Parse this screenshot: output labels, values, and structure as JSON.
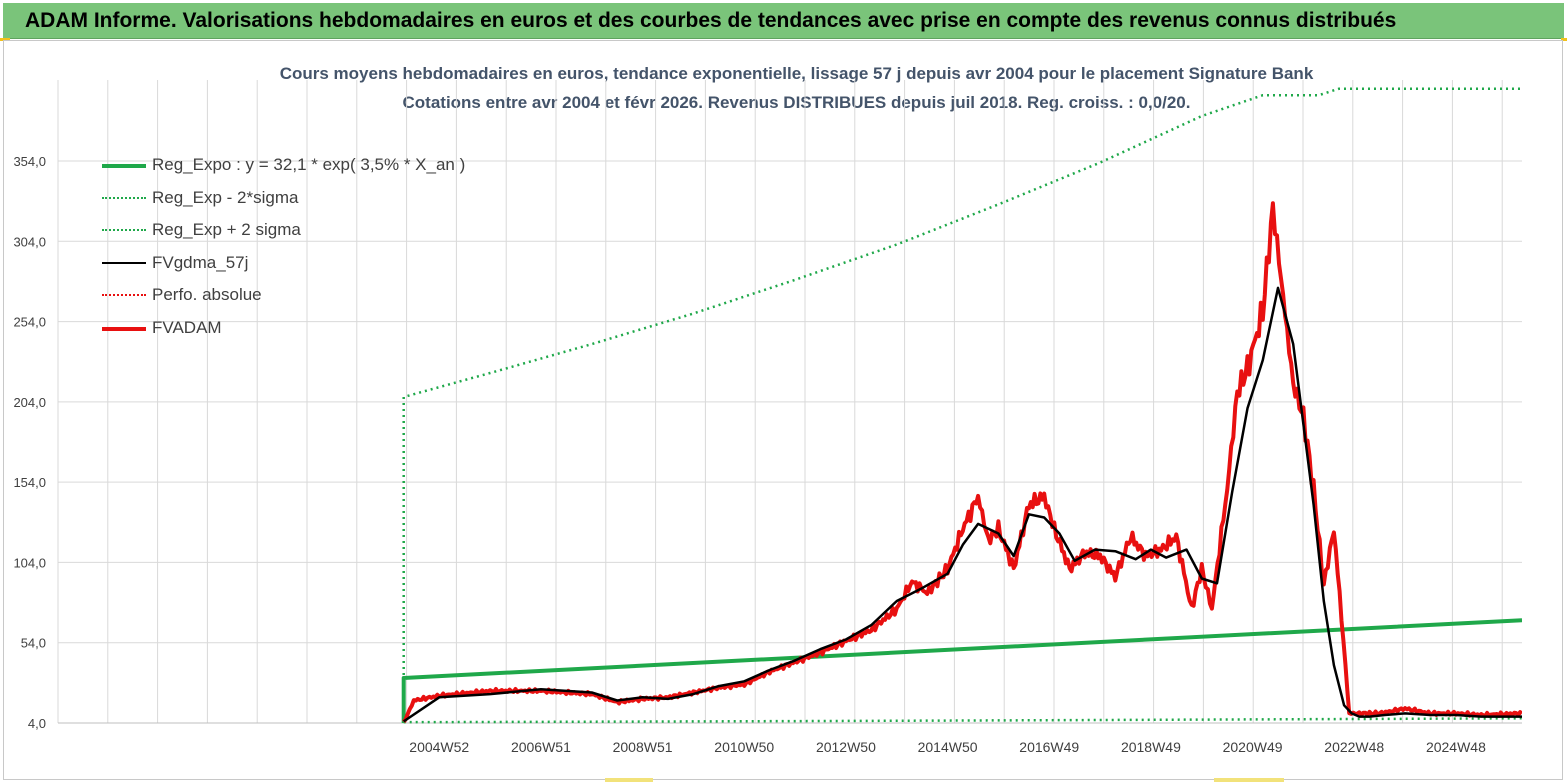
{
  "banner": {
    "title": "ADAM Informe. Valorisations hebdomadaires en euros et des courbes de tendances avec prise en compte des revenus connus distribués"
  },
  "colors": {
    "banner_bg": "#7ac47a",
    "reg_expo": "#1fa84a",
    "sigma": "#1fa84a",
    "fvgdma": "#000000",
    "perfo": "#e81010",
    "fvadam": "#e81010",
    "grid": "#d9d9d9",
    "title_text": "#44546a"
  },
  "chart_data": {
    "type": "line",
    "title_line1": "Cours moyens hebdomadaires en euros, tendance exponentielle, lissage 57 j depuis avr 2004 pour le placement Signature Bank",
    "title_line2": "Cotations entre avr 2004 et févr 2026. Revenus DISTRIBUES depuis juil 2018. Reg. croiss. : 0,0/20.",
    "y_ticks": [
      "4,0",
      "54,0",
      "104,0",
      "154,0",
      "204,0",
      "254,0",
      "304,0",
      "354,0"
    ],
    "y_tick_values": [
      4,
      54,
      104,
      154,
      204,
      254,
      304,
      354
    ],
    "ylim": [
      4,
      394
    ],
    "xlim": [
      1997.5,
      2026.3
    ],
    "x_ticks": [
      "2004W52",
      "2006W51",
      "2008W51",
      "2010W50",
      "2012W50",
      "2014W50",
      "2016W49",
      "2018W49",
      "2020W49",
      "2022W48",
      "2024W48"
    ],
    "x_tick_values": [
      2005.0,
      2007.0,
      2009.0,
      2011.0,
      2013.0,
      2015.0,
      2017.0,
      2019.0,
      2021.0,
      2023.0,
      2025.0
    ],
    "legend_position": "top-left",
    "grid": true,
    "series": [
      {
        "name": "Reg_Expo : y = 32,1 * exp( 3,5% *  X_an )",
        "style": "solid-thick",
        "color": "#1fa84a",
        "x": [
          2004.3,
          2004.3,
          2026.3
        ],
        "y": [
          4,
          32,
          68
        ]
      },
      {
        "name": "Reg_Exp - 2*sigma",
        "style": "dotted",
        "color": "#1fa84a",
        "x": [
          2004.3,
          2008.0,
          2012.0,
          2016.0,
          2020.0,
          2024.0,
          2026.3
        ],
        "y": [
          4.5,
          4.8,
          5.2,
          5.6,
          6.1,
          6.6,
          6.9
        ]
      },
      {
        "name": "Reg_Exp + 2 sigma",
        "style": "dotted",
        "color": "#1fa84a",
        "x": [
          2004.3,
          2004.3,
          2006.0,
          2008.0,
          2010.0,
          2012.0,
          2014.0,
          2016.0,
          2018.0,
          2020.0,
          2021.2,
          2022.3,
          2022.7,
          2026.3
        ],
        "y": [
          4,
          207,
          222,
          240,
          259,
          280,
          302,
          327,
          353,
          382,
          395,
          395,
          399,
          399
        ]
      },
      {
        "name": "FVgdma_57j",
        "style": "solid",
        "color": "#000000",
        "x": [
          2004.3,
          2005.0,
          2006.0,
          2007.0,
          2008.0,
          2008.5,
          2009.0,
          2009.5,
          2010.0,
          2010.5,
          2011.0,
          2011.5,
          2012.0,
          2012.5,
          2013.0,
          2013.5,
          2014.0,
          2014.5,
          2015.0,
          2015.3,
          2015.6,
          2016.0,
          2016.3,
          2016.6,
          2016.9,
          2017.2,
          2017.5,
          2017.9,
          2018.3,
          2018.7,
          2019.0,
          2019.3,
          2019.7,
          2020.0,
          2020.3,
          2020.6,
          2020.9,
          2021.2,
          2021.5,
          2021.8,
          2022.0,
          2022.2,
          2022.4,
          2022.6,
          2022.8,
          2022.95,
          2023.1,
          2023.3,
          2023.6,
          2024.0,
          2024.5,
          2025.0,
          2025.5,
          2026.3
        ],
        "y": [
          5,
          20,
          22,
          25,
          23,
          18,
          20,
          19,
          22,
          27,
          30,
          37,
          43,
          50,
          56,
          65,
          80,
          88,
          97,
          115,
          128,
          122,
          108,
          134,
          132,
          122,
          105,
          112,
          111,
          106,
          112,
          107,
          112,
          94,
          91,
          148,
          200,
          230,
          275,
          240,
          190,
          140,
          80,
          40,
          15,
          10,
          8,
          8,
          9,
          10,
          9,
          9,
          8,
          8
        ]
      },
      {
        "name": "Perfo. absolue",
        "style": "dotted",
        "color": "#e81010",
        "x": [
          2004.3,
          2004.5,
          2005.0,
          2006.0,
          2007.0,
          2008.0,
          2008.5,
          2009.0,
          2009.5,
          2010.0,
          2010.5,
          2011.0,
          2011.5,
          2012.0,
          2012.5,
          2013.0,
          2013.5,
          2014.0,
          2014.3,
          2014.6,
          2015.0,
          2015.3,
          2015.6,
          2015.8,
          2016.0,
          2016.3,
          2016.6,
          2016.9,
          2017.1,
          2017.4,
          2017.7,
          2018.0,
          2018.3,
          2018.6,
          2018.9,
          2019.2,
          2019.5,
          2019.8,
          2020.0,
          2020.2,
          2020.5,
          2020.7,
          2020.9,
          2021.2,
          2021.4,
          2021.6,
          2021.8,
          2022.0,
          2022.2,
          2022.4,
          2022.6,
          2022.75,
          2022.9,
          2023.1,
          2023.5,
          2024.0,
          2024.5,
          2025.0,
          2025.5,
          2026.3
        ],
        "y": [
          4,
          18,
          21,
          24,
          24,
          22,
          17,
          19,
          20,
          23,
          26,
          28,
          36,
          42,
          48,
          55,
          62,
          75,
          92,
          85,
          100,
          125,
          145,
          118,
          125,
          100,
          140,
          145,
          125,
          100,
          110,
          108,
          95,
          120,
          108,
          112,
          120,
          75,
          100,
          75,
          150,
          210,
          225,
          260,
          325,
          270,
          215,
          195,
          150,
          90,
          125,
          70,
          10,
          10,
          10,
          13,
          10,
          10,
          9,
          10
        ]
      },
      {
        "name": "FVADAM",
        "style": "solid-thick",
        "color": "#e81010",
        "x": [
          2004.3,
          2004.5,
          2005.0,
          2006.0,
          2007.0,
          2008.0,
          2008.5,
          2009.0,
          2009.5,
          2010.0,
          2010.5,
          2011.0,
          2011.5,
          2012.0,
          2012.5,
          2013.0,
          2013.5,
          2014.0,
          2014.3,
          2014.6,
          2015.0,
          2015.3,
          2015.6,
          2015.8,
          2016.0,
          2016.3,
          2016.6,
          2016.9,
          2017.1,
          2017.4,
          2017.7,
          2018.0,
          2018.3,
          2018.6,
          2018.9,
          2019.2,
          2019.5,
          2019.8,
          2020.0,
          2020.2,
          2020.5,
          2020.7,
          2020.9,
          2021.2,
          2021.4,
          2021.6,
          2021.8,
          2022.0,
          2022.2,
          2022.4,
          2022.6,
          2022.75,
          2022.9,
          2023.1,
          2023.5,
          2024.0,
          2024.5,
          2025.0,
          2025.5,
          2026.3
        ],
        "y": [
          4,
          18,
          21,
          24,
          24,
          22,
          17,
          19,
          20,
          23,
          26,
          28,
          36,
          42,
          48,
          55,
          62,
          75,
          92,
          85,
          100,
          125,
          145,
          118,
          125,
          100,
          140,
          145,
          125,
          100,
          110,
          108,
          95,
          120,
          108,
          112,
          120,
          75,
          100,
          75,
          150,
          210,
          225,
          260,
          325,
          270,
          215,
          195,
          150,
          90,
          125,
          70,
          10,
          10,
          10,
          13,
          10,
          10,
          9,
          10
        ]
      }
    ]
  }
}
